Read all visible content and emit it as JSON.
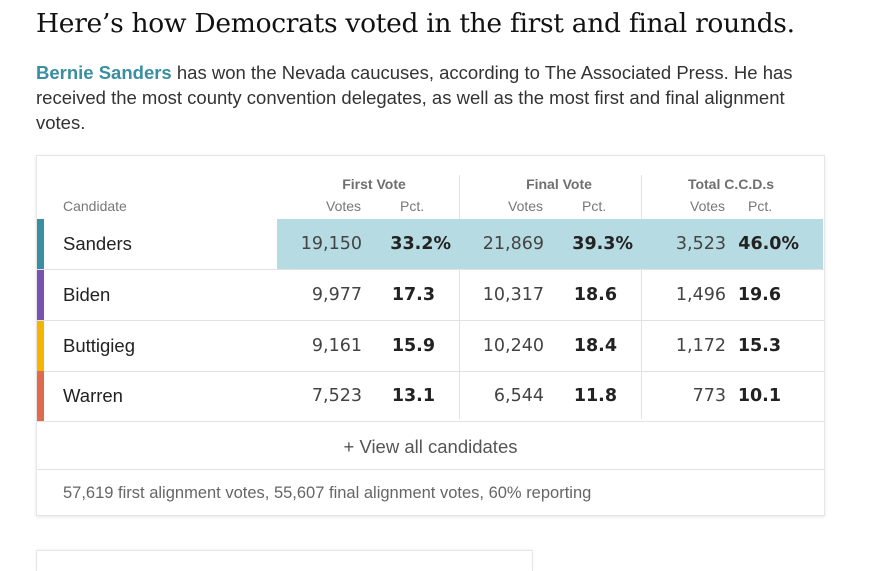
{
  "headline": "Here’s how Democrats voted in the first and final rounds.",
  "summary": {
    "name": "Bernie Sanders",
    "rest": " has won the Nevada caucuses, according to The Associated Press. He has received the most county convention delegates, as well as the most first and final alignment votes."
  },
  "table": {
    "candidate_header": "Candidate",
    "groups": [
      {
        "label": "First Vote",
        "votes_label": "Votes",
        "pct_label": "Pct."
      },
      {
        "label": "Final Vote",
        "votes_label": "Votes",
        "pct_label": "Pct."
      },
      {
        "label": "Total C.C.D.s",
        "votes_label": "Votes",
        "pct_label": "Pct."
      }
    ],
    "rows": [
      {
        "candidate": "Sanders",
        "color": "#3a8ea1",
        "highlighted": true,
        "first_votes": "19,150",
        "first_pct": "33.2%",
        "final_votes": "21,869",
        "final_pct": "39.3%",
        "ccd_votes": "3,523",
        "ccd_pct": "46.0%"
      },
      {
        "candidate": "Biden",
        "color": "#7a52b3",
        "highlighted": false,
        "first_votes": "9,977",
        "first_pct": "17.3",
        "final_votes": "10,317",
        "final_pct": "18.6",
        "ccd_votes": "1,496",
        "ccd_pct": "19.6"
      },
      {
        "candidate": "Buttigieg",
        "color": "#f5b400",
        "highlighted": false,
        "first_votes": "9,161",
        "first_pct": "15.9",
        "final_votes": "10,240",
        "final_pct": "18.4",
        "ccd_votes": "1,172",
        "ccd_pct": "15.3"
      },
      {
        "candidate": "Warren",
        "color": "#e06a4e",
        "highlighted": false,
        "first_votes": "7,523",
        "first_pct": "13.1",
        "final_votes": "6,544",
        "final_pct": "11.8",
        "ccd_votes": "773",
        "ccd_pct": "10.1"
      }
    ],
    "view_all": "+ View all candidates",
    "footnote": "57,619 first alignment votes, 55,607 final alignment votes, 60% reporting"
  }
}
